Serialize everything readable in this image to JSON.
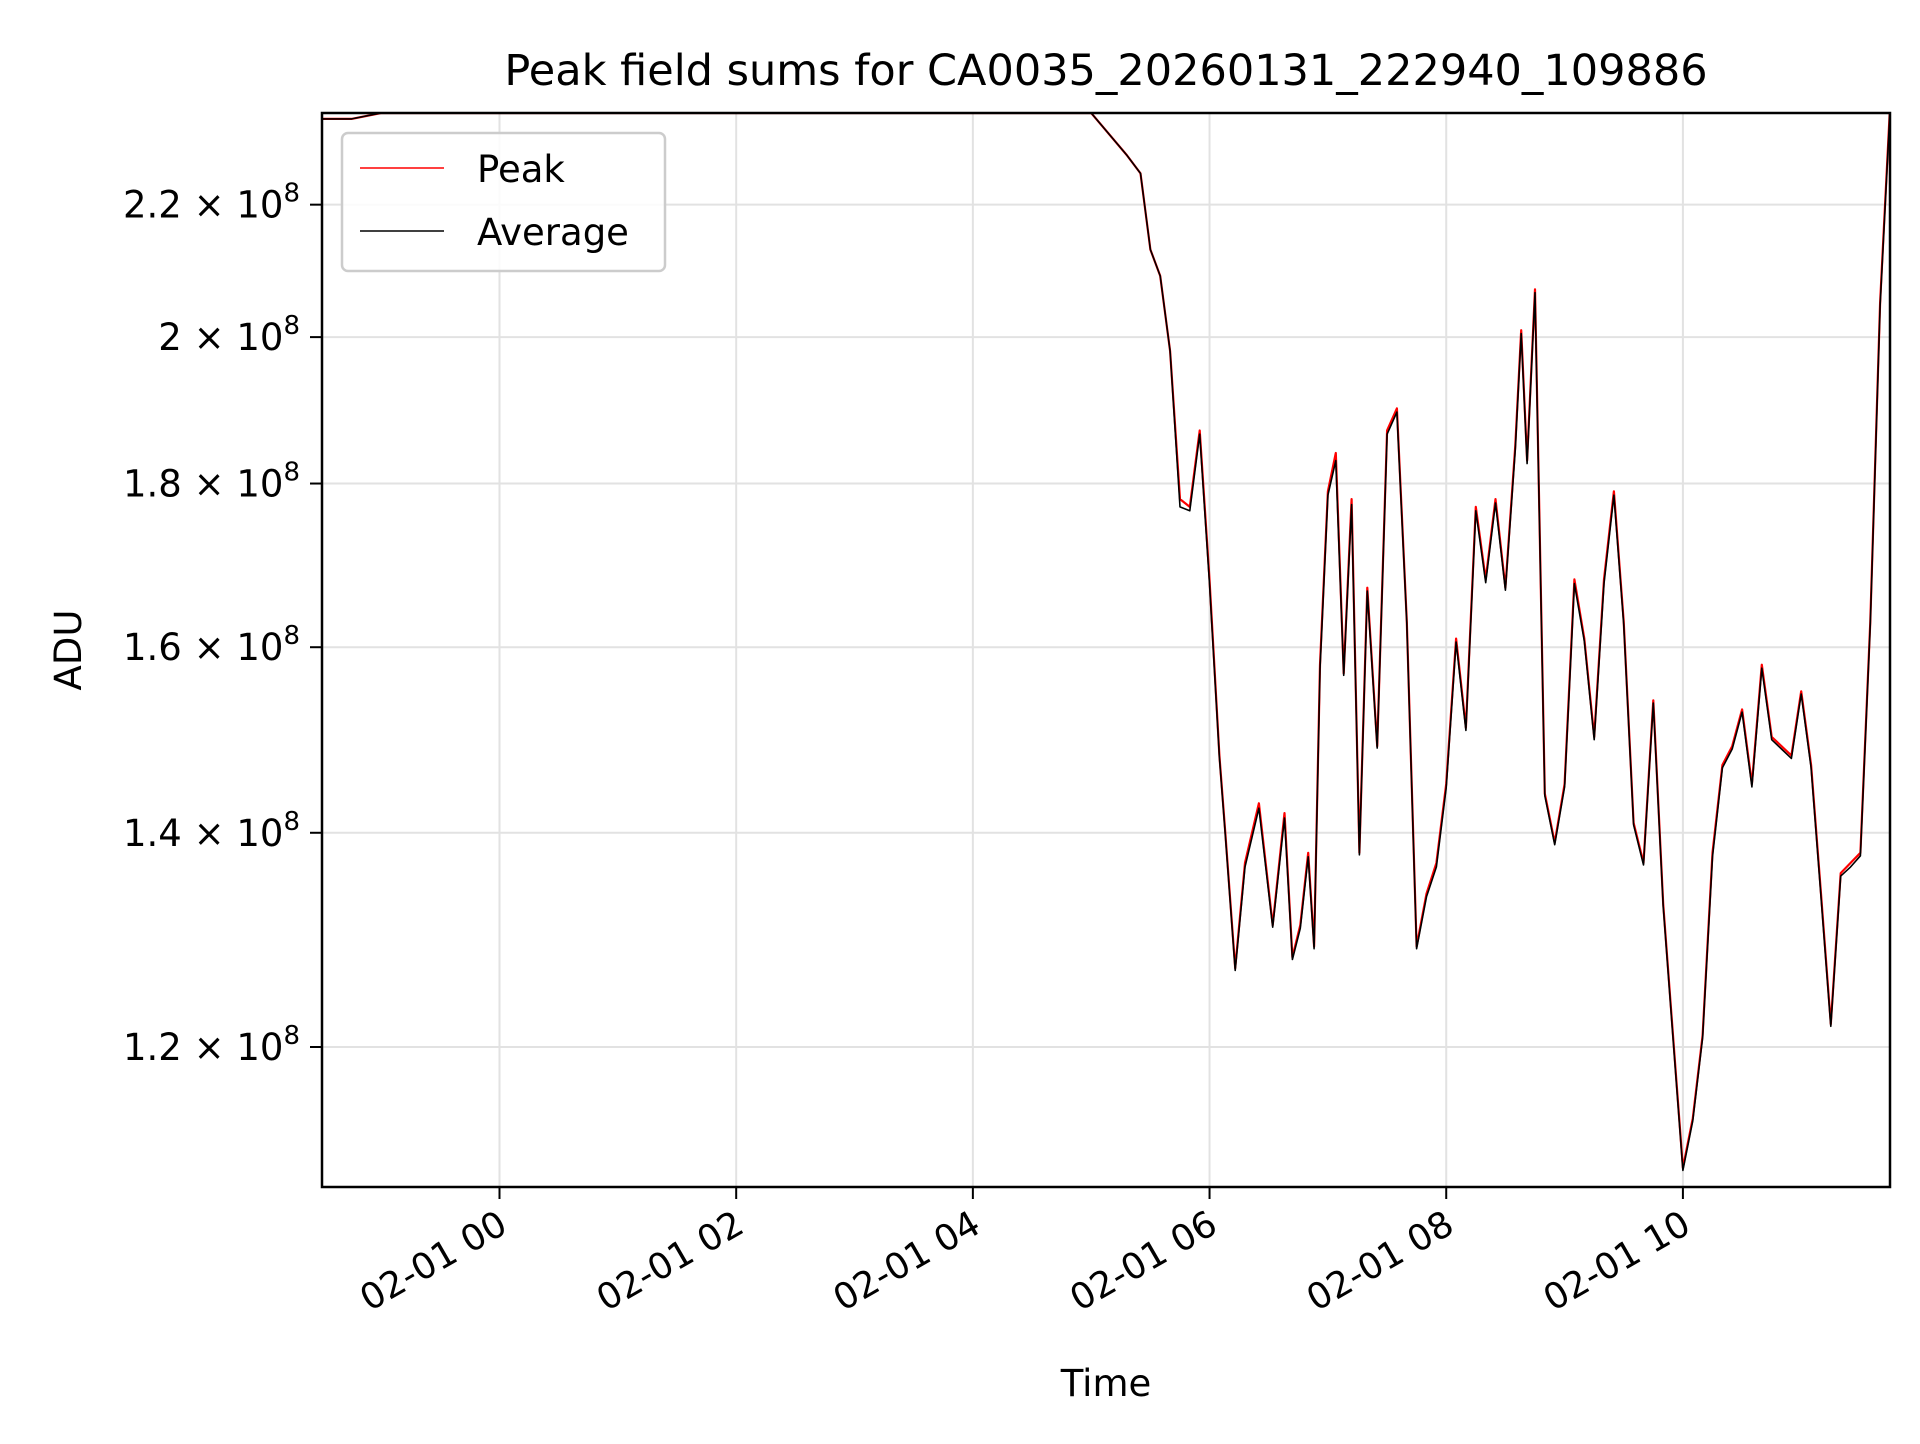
{
  "chart_data": {
    "type": "line",
    "title": "Peak field sums for CA0035_20260131_222940_109886",
    "xlabel": "Time",
    "ylabel": "ADU",
    "x_tick_labels": [
      "02-01 00",
      "02-01 02",
      "02-01 04",
      "02-01 06",
      "02-01 08",
      "02-01 10"
    ],
    "y_scale": "log",
    "y_ticks": [
      {
        "value": 120000000,
        "mantissa": "1.2",
        "exponent": "8"
      },
      {
        "value": 140000000,
        "mantissa": "1.4",
        "exponent": "8"
      },
      {
        "value": 160000000,
        "mantissa": "1.6",
        "exponent": "8"
      },
      {
        "value": 180000000,
        "mantissa": "1.8",
        "exponent": "8"
      },
      {
        "value": 200000000,
        "mantissa": "2",
        "exponent": "8"
      },
      {
        "value": 220000000,
        "mantissa": "2.2",
        "exponent": "8"
      }
    ],
    "xlim": [
      "2026-01-31T22:30",
      "2026-02-01T11:45"
    ],
    "ylim": [
      108500000,
      235000000
    ],
    "grid": true,
    "legend_position": "upper-left",
    "series": [
      {
        "name": "Peak",
        "color": "#ff0000",
        "x": [
          "2026-01-31T22:30",
          "2026-01-31T22:45",
          "2026-01-31T23:00",
          "2026-02-01T00:00",
          "2026-02-01T02:00",
          "2026-02-01T04:00",
          "2026-02-01T05:00",
          "2026-02-01T05:18",
          "2026-02-01T05:25",
          "2026-02-01T05:30",
          "2026-02-01T05:35",
          "2026-02-01T05:40",
          "2026-02-01T05:45",
          "2026-02-01T05:50",
          "2026-02-01T05:55",
          "2026-02-01T06:00",
          "2026-02-01T06:05",
          "2026-02-01T06:08",
          "2026-02-01T06:13",
          "2026-02-01T06:18",
          "2026-02-01T06:25",
          "2026-02-01T06:32",
          "2026-02-01T06:38",
          "2026-02-01T06:42",
          "2026-02-01T06:46",
          "2026-02-01T06:50",
          "2026-02-01T06:53",
          "2026-02-01T06:56",
          "2026-02-01T07:00",
          "2026-02-01T07:04",
          "2026-02-01T07:08",
          "2026-02-01T07:12",
          "2026-02-01T07:16",
          "2026-02-01T07:20",
          "2026-02-01T07:25",
          "2026-02-01T07:30",
          "2026-02-01T07:35",
          "2026-02-01T07:40",
          "2026-02-01T07:45",
          "2026-02-01T07:50",
          "2026-02-01T07:55",
          "2026-02-01T08:00",
          "2026-02-01T08:05",
          "2026-02-01T08:10",
          "2026-02-01T08:15",
          "2026-02-01T08:20",
          "2026-02-01T08:25",
          "2026-02-01T08:30",
          "2026-02-01T08:35",
          "2026-02-01T08:38",
          "2026-02-01T08:41",
          "2026-02-01T08:45",
          "2026-02-01T08:50",
          "2026-02-01T08:55",
          "2026-02-01T09:00",
          "2026-02-01T09:05",
          "2026-02-01T09:10",
          "2026-02-01T09:15",
          "2026-02-01T09:20",
          "2026-02-01T09:25",
          "2026-02-01T09:30",
          "2026-02-01T09:35",
          "2026-02-01T09:40",
          "2026-02-01T09:45",
          "2026-02-01T09:50",
          "2026-02-01T09:55",
          "2026-02-01T10:00",
          "2026-02-01T10:05",
          "2026-02-01T10:10",
          "2026-02-01T10:15",
          "2026-02-01T10:20",
          "2026-02-01T10:25",
          "2026-02-01T10:30",
          "2026-02-01T10:35",
          "2026-02-01T10:40",
          "2026-02-01T10:45",
          "2026-02-01T10:50",
          "2026-02-01T10:55",
          "2026-02-01T11:00",
          "2026-02-01T11:05",
          "2026-02-01T11:10",
          "2026-02-01T11:15",
          "2026-02-01T11:20",
          "2026-02-01T11:25",
          "2026-02-01T11:30",
          "2026-02-01T11:35",
          "2026-02-01T11:40",
          "2026-02-01T11:45"
        ],
        "y": [
          234000000,
          234000000,
          235000000,
          235000000,
          235000000,
          235000000,
          235000000,
          228000000,
          225000000,
          213000000,
          209000000,
          198000000,
          178000000,
          177000000,
          187000000,
          168000000,
          148000000,
          140000000,
          127000000,
          137000000,
          143000000,
          131000000,
          142000000,
          128000000,
          131000000,
          138000000,
          129000000,
          158000000,
          179000000,
          184000000,
          157000000,
          178000000,
          138000000,
          167000000,
          149000000,
          187000000,
          190000000,
          163000000,
          129000000,
          134000000,
          137000000,
          145000000,
          161000000,
          151000000,
          177000000,
          168000000,
          178000000,
          167000000,
          185000000,
          201000000,
          183000000,
          207000000,
          144000000,
          139000000,
          145000000,
          168000000,
          161000000,
          150000000,
          168000000,
          179000000,
          163000000,
          141000000,
          137000000,
          154000000,
          133000000,
          121000000,
          110000000,
          114000000,
          121000000,
          138000000,
          147000000,
          149000000,
          153000000,
          145000000,
          158000000,
          150000000,
          149000000,
          148000000,
          155000000,
          147000000,
          134000000,
          122000000,
          136000000,
          137000000,
          138000000,
          163000000,
          205000000,
          236000000
        ]
      },
      {
        "name": "Average",
        "color": "#000000",
        "x": [
          "2026-01-31T22:30",
          "2026-01-31T22:45",
          "2026-01-31T23:00",
          "2026-02-01T00:00",
          "2026-02-01T02:00",
          "2026-02-01T04:00",
          "2026-02-01T05:00",
          "2026-02-01T05:18",
          "2026-02-01T05:25",
          "2026-02-01T05:30",
          "2026-02-01T05:35",
          "2026-02-01T05:40",
          "2026-02-01T05:45",
          "2026-02-01T05:50",
          "2026-02-01T05:55",
          "2026-02-01T06:00",
          "2026-02-01T06:05",
          "2026-02-01T06:08",
          "2026-02-01T06:13",
          "2026-02-01T06:18",
          "2026-02-01T06:25",
          "2026-02-01T06:32",
          "2026-02-01T06:38",
          "2026-02-01T06:42",
          "2026-02-01T06:46",
          "2026-02-01T06:50",
          "2026-02-01T06:53",
          "2026-02-01T06:56",
          "2026-02-01T07:00",
          "2026-02-01T07:04",
          "2026-02-01T07:08",
          "2026-02-01T07:12",
          "2026-02-01T07:16",
          "2026-02-01T07:20",
          "2026-02-01T07:25",
          "2026-02-01T07:30",
          "2026-02-01T07:35",
          "2026-02-01T07:40",
          "2026-02-01T07:45",
          "2026-02-01T07:50",
          "2026-02-01T07:55",
          "2026-02-01T08:00",
          "2026-02-01T08:05",
          "2026-02-01T08:10",
          "2026-02-01T08:15",
          "2026-02-01T08:20",
          "2026-02-01T08:25",
          "2026-02-01T08:30",
          "2026-02-01T08:35",
          "2026-02-01T08:38",
          "2026-02-01T08:41",
          "2026-02-01T08:45",
          "2026-02-01T08:50",
          "2026-02-01T08:55",
          "2026-02-01T09:00",
          "2026-02-01T09:05",
          "2026-02-01T09:10",
          "2026-02-01T09:15",
          "2026-02-01T09:20",
          "2026-02-01T09:25",
          "2026-02-01T09:30",
          "2026-02-01T09:35",
          "2026-02-01T09:40",
          "2026-02-01T09:45",
          "2026-02-01T09:50",
          "2026-02-01T09:55",
          "2026-02-01T10:00",
          "2026-02-01T10:05",
          "2026-02-01T10:10",
          "2026-02-01T10:15",
          "2026-02-01T10:20",
          "2026-02-01T10:25",
          "2026-02-01T10:30",
          "2026-02-01T10:35",
          "2026-02-01T10:40",
          "2026-02-01T10:45",
          "2026-02-01T10:50",
          "2026-02-01T10:55",
          "2026-02-01T11:00",
          "2026-02-01T11:05",
          "2026-02-01T11:10",
          "2026-02-01T11:15",
          "2026-02-01T11:20",
          "2026-02-01T11:25",
          "2026-02-01T11:30",
          "2026-02-01T11:35",
          "2026-02-01T11:40",
          "2026-02-01T11:45"
        ],
        "y": [
          234000000,
          234000000,
          235000000,
          235000000,
          235000000,
          235000000,
          235000000,
          228000000,
          225000000,
          213000000,
          209000000,
          198000000,
          177000000,
          176500000,
          186500000,
          167500000,
          147800000,
          139800000,
          126800000,
          136600000,
          142500000,
          130800000,
          141500000,
          127800000,
          130700000,
          137600000,
          128800000,
          157500000,
          178500000,
          183000000,
          156800000,
          177300000,
          137800000,
          166600000,
          148800000,
          186500000,
          189500000,
          162800000,
          128800000,
          133700000,
          136600000,
          144600000,
          160600000,
          150700000,
          176500000,
          167600000,
          177500000,
          166700000,
          184500000,
          200500000,
          182600000,
          206500000,
          143800000,
          138800000,
          144700000,
          167500000,
          160700000,
          149700000,
          167500000,
          178500000,
          162700000,
          140800000,
          136800000,
          153700000,
          132800000,
          120800000,
          109800000,
          113800000,
          120800000,
          137600000,
          146700000,
          148700000,
          152700000,
          144700000,
          157600000,
          149700000,
          148700000,
          147700000,
          154700000,
          146700000,
          133700000,
          121800000,
          135700000,
          136600000,
          137700000,
          162700000,
          204500000,
          235500000
        ]
      }
    ]
  }
}
